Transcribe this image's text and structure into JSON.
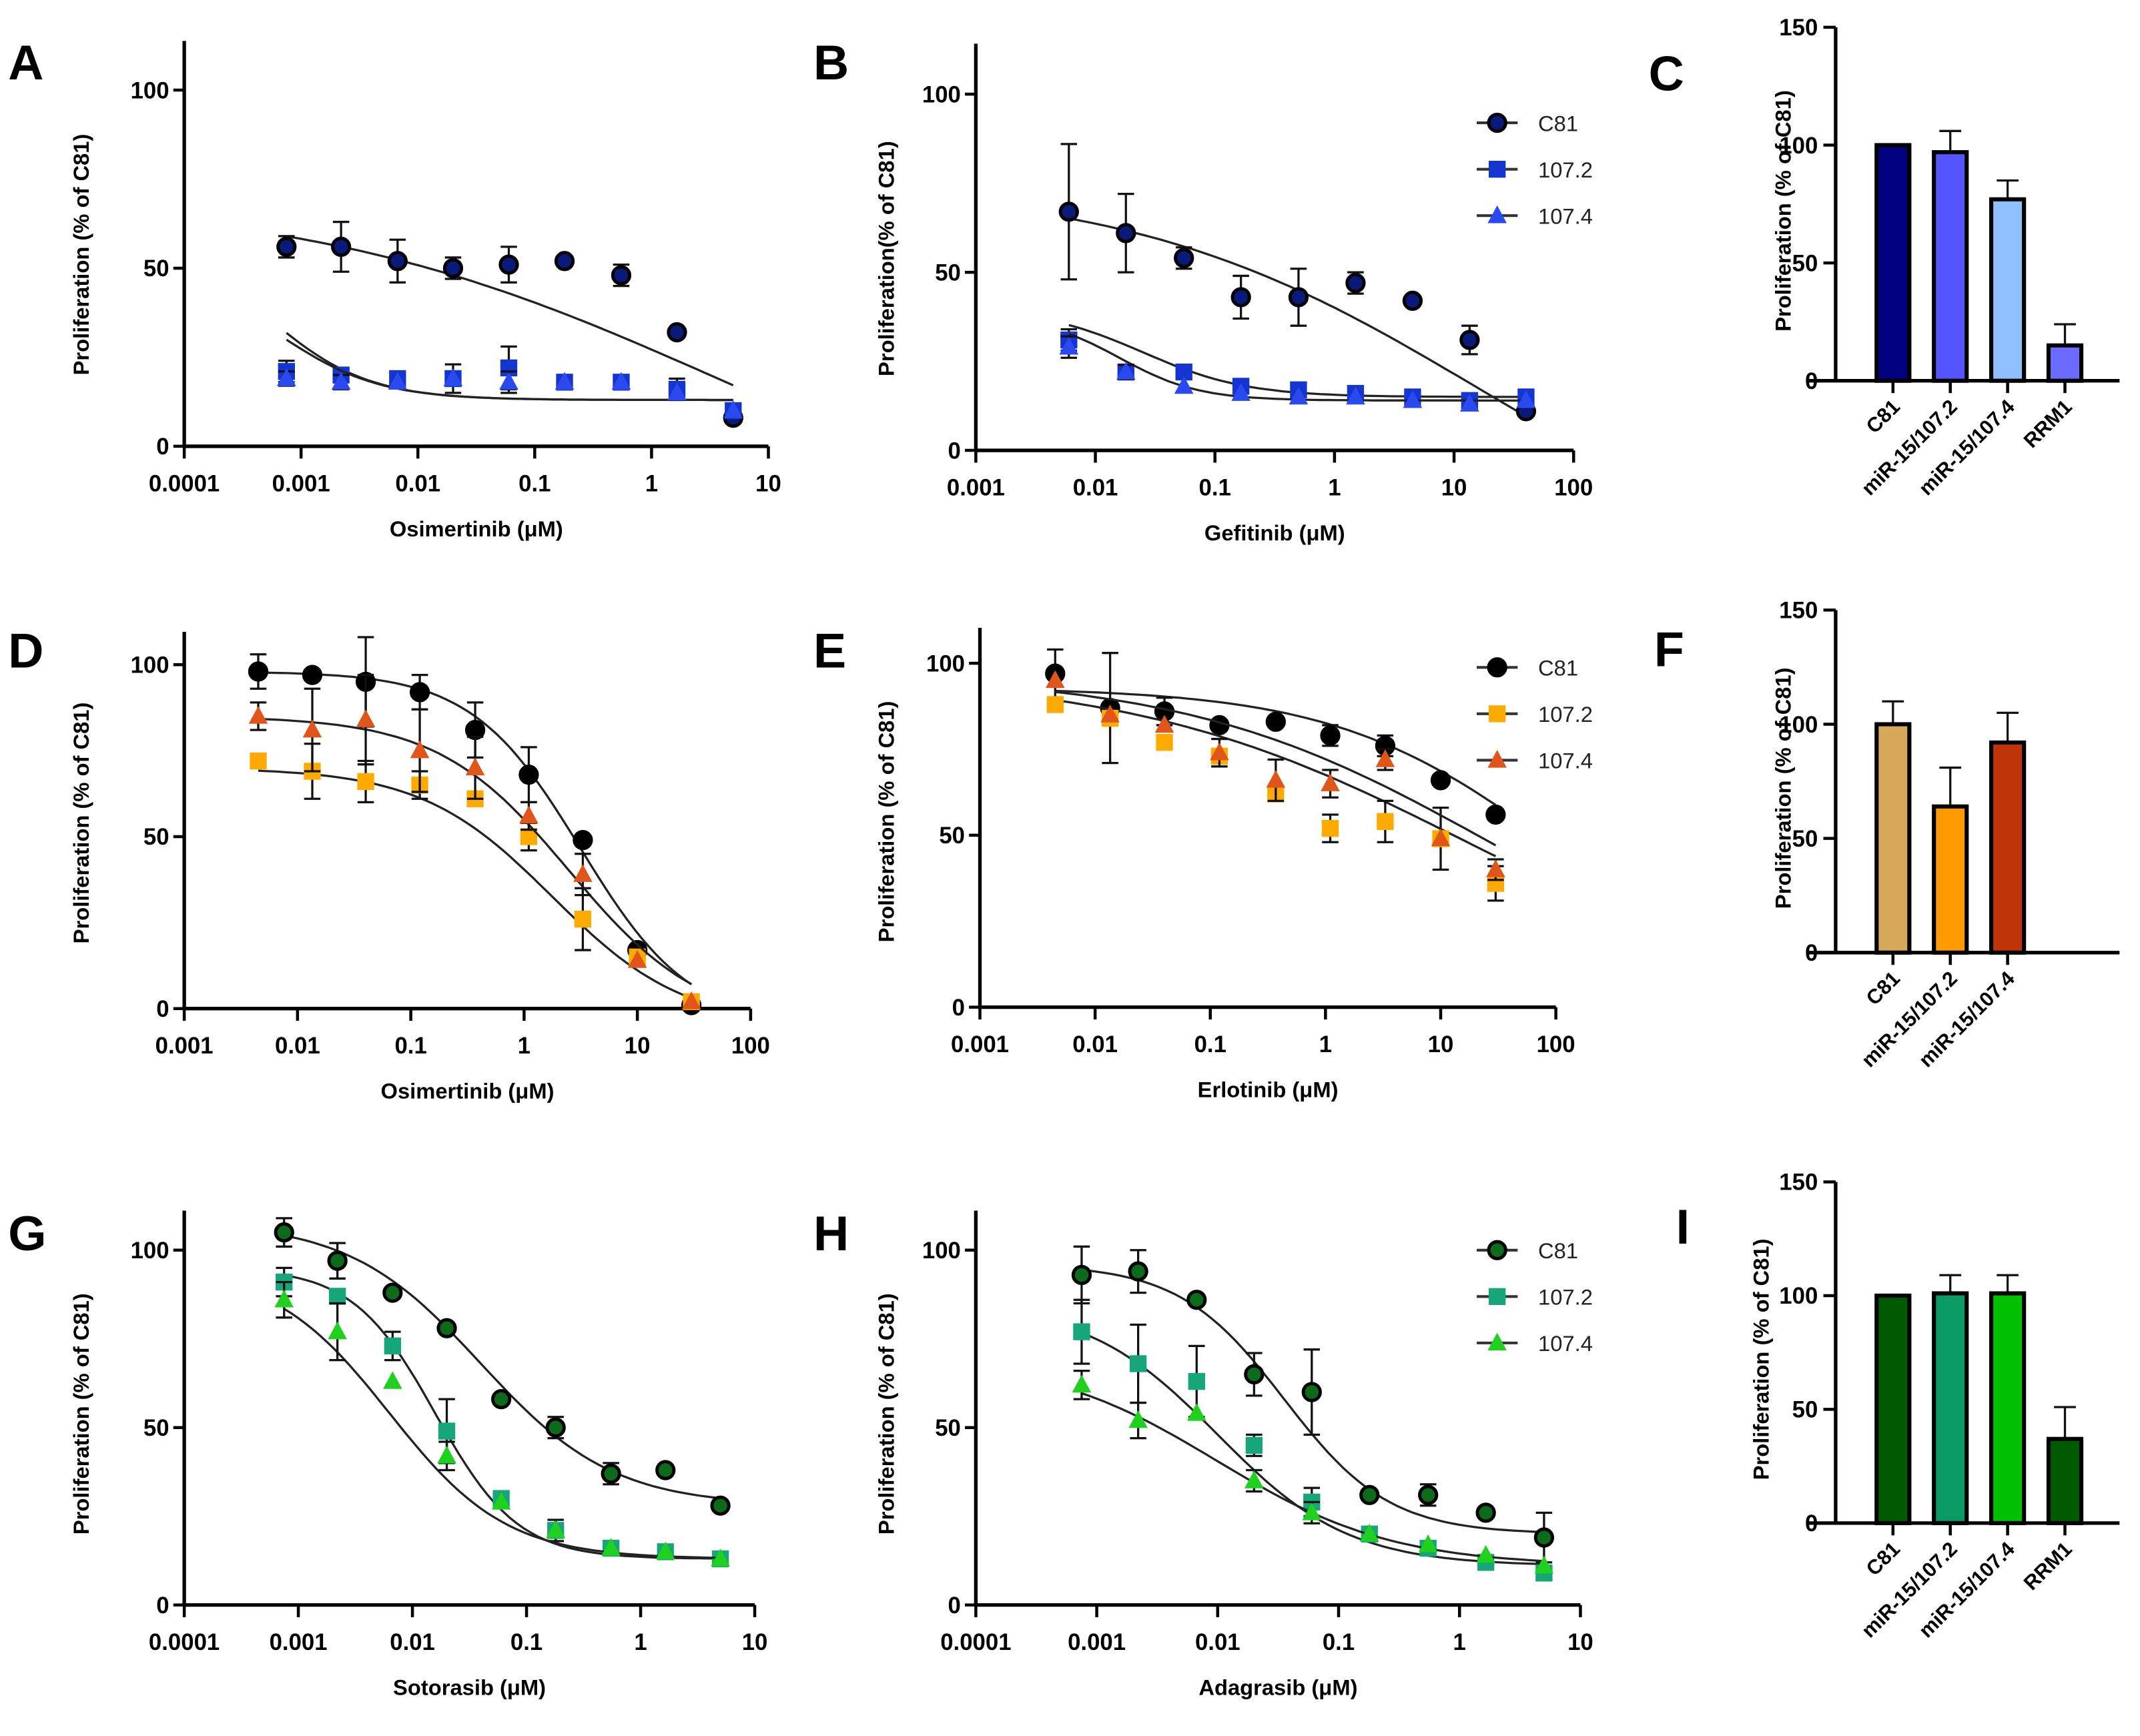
{
  "figure": {
    "panels": [
      "A",
      "B",
      "C",
      "D",
      "E",
      "F",
      "G",
      "H",
      "I"
    ]
  },
  "chart_data": [
    {
      "id": "A",
      "type": "scatter",
      "xscale": "log",
      "xlabel": "Osimertinib (μM)",
      "ylabel": "Proliferation (% of C81)",
      "xticks": [
        "0.0001",
        "0.001",
        "0.01",
        "0.1",
        "1",
        "10"
      ],
      "xlim": [
        0.0001,
        10
      ],
      "yticks": [
        "0",
        "50",
        "100"
      ],
      "ylim": [
        0,
        100
      ],
      "legend": null,
      "colors": {
        "C81": "#0a1a7a",
        "107.2": "#1535d0",
        "107.4": "#2a4af0"
      },
      "series": [
        {
          "name": "C81",
          "marker": "circle",
          "x": [
            0.00075,
            0.0022,
            0.0067,
            0.02,
            0.06,
            0.18,
            0.55,
            1.65,
            5
          ],
          "y": [
            56,
            56,
            52,
            50,
            51,
            52,
            48,
            32,
            8
          ],
          "err": [
            3,
            7,
            6,
            3,
            5,
            0,
            3,
            0,
            0
          ],
          "fit": {
            "top": 70,
            "bottom": -30,
            "logec50": 0.5,
            "hill": 0.25
          }
        },
        {
          "name": "107.2",
          "marker": "square",
          "x": [
            0.00075,
            0.0022,
            0.0067,
            0.02,
            0.06,
            0.18,
            0.55,
            1.65,
            5
          ],
          "y": [
            21,
            20,
            19,
            19,
            22,
            18,
            18,
            16,
            10
          ],
          "err": [
            3,
            2,
            0,
            4,
            6,
            0,
            0,
            3,
            0
          ],
          "fit": {
            "top": 60,
            "bottom": 13,
            "logec50": -3.3,
            "hill": 1.0
          }
        },
        {
          "name": "107.4",
          "marker": "triangle",
          "x": [
            0.00075,
            0.0022,
            0.0067,
            0.02,
            0.06,
            0.18,
            0.55,
            1.65,
            5
          ],
          "y": [
            19,
            18,
            18,
            19,
            18,
            18,
            18,
            15,
            10
          ],
          "err": [
            2,
            2,
            0,
            0,
            3,
            0,
            0,
            0,
            0
          ],
          "fit": {
            "top": 50,
            "bottom": 13,
            "logec50": -3.2,
            "hill": 1.0
          }
        }
      ]
    },
    {
      "id": "B",
      "type": "scatter",
      "xscale": "log",
      "xlabel": "Gefitinib (μM)",
      "ylabel": "Proliferation(% of C81)",
      "xticks": [
        "0.001",
        "0.01",
        "0.1",
        "1",
        "10",
        "100"
      ],
      "xlim": [
        0.001,
        100
      ],
      "yticks": [
        "0",
        "50",
        "100"
      ],
      "ylim": [
        0,
        100
      ],
      "legend": {
        "position": "top-right",
        "entries": [
          "C81",
          "107.2",
          "107.4"
        ]
      },
      "colors": {
        "C81": "#0a1a7a",
        "107.2": "#1535d0",
        "107.4": "#2a4af0"
      },
      "series": [
        {
          "name": "C81",
          "marker": "circle",
          "x": [
            0.006,
            0.018,
            0.055,
            0.165,
            0.5,
            1.5,
            4.5,
            13.5,
            40
          ],
          "y": [
            67,
            61,
            54,
            43,
            43,
            47,
            42,
            31,
            11
          ],
          "err": [
            19,
            11,
            3,
            6,
            8,
            3,
            0,
            4,
            0
          ],
          "fit": {
            "top": 75,
            "bottom": -40,
            "logec50": 1.2,
            "hill": 0.3
          }
        },
        {
          "name": "107.2",
          "marker": "square",
          "x": [
            0.006,
            0.018,
            0.055,
            0.165,
            0.5,
            1.5,
            4.5,
            13.5,
            40
          ],
          "y": [
            31,
            22,
            22,
            18,
            17,
            16,
            15,
            14,
            15
          ],
          "err": [
            3,
            2,
            0,
            0,
            0,
            0,
            0,
            0,
            0
          ],
          "fit": {
            "top": 40,
            "bottom": 15,
            "logec50": -1.6,
            "hill": 1.0
          }
        },
        {
          "name": "107.4",
          "marker": "triangle",
          "x": [
            0.006,
            0.018,
            0.055,
            0.165,
            0.5,
            1.5,
            4.5,
            13.5,
            40
          ],
          "y": [
            29,
            22,
            18,
            16,
            15,
            15,
            14,
            13,
            14
          ],
          "err": [
            3,
            2,
            0,
            0,
            0,
            0,
            0,
            0,
            0
          ],
          "fit": {
            "top": 38,
            "bottom": 14,
            "logec50": -1.8,
            "hill": 1.3
          }
        }
      ]
    },
    {
      "id": "C",
      "type": "bar",
      "ylabel": "Proliferation (% of C81)",
      "categories": [
        "C81",
        "miR-15/107.2",
        "miR-15/107.4",
        "RRM1"
      ],
      "values": [
        100,
        97,
        77,
        15
      ],
      "errors": [
        0,
        9,
        8,
        9
      ],
      "colors": [
        "#000080",
        "#5555ff",
        "#90c0ff",
        "#6b6bff"
      ],
      "yticks": [
        "0",
        "50",
        "100",
        "150"
      ],
      "ylim": [
        0,
        150
      ]
    },
    {
      "id": "D",
      "type": "scatter",
      "xscale": "log",
      "xlabel": "Osimertinib (μM)",
      "ylabel": "Proliferation (% of C81)",
      "xticks": [
        "0.001",
        "0.01",
        "0.1",
        "1",
        "10",
        "100"
      ],
      "xlim": [
        0.001,
        100
      ],
      "yticks": [
        "0",
        "50",
        "100"
      ],
      "ylim": [
        0,
        100
      ],
      "legend": null,
      "colors": {
        "C81": "#000000",
        "107.2": "#ffaa00",
        "107.4": "#e0561a"
      },
      "series": [
        {
          "name": "C81",
          "marker": "circle",
          "x": [
            0.0045,
            0.0135,
            0.04,
            0.12,
            0.37,
            1.1,
            3.3,
            10,
            30
          ],
          "y": [
            98,
            97,
            95,
            92,
            81,
            68,
            49,
            17,
            1
          ],
          "err": [
            5,
            0,
            13,
            5,
            8,
            8,
            0,
            0,
            0
          ],
          "fit": {
            "top": 98,
            "bottom": -5,
            "logec50": 0.5,
            "hill": 0.9
          }
        },
        {
          "name": "107.2",
          "marker": "square",
          "x": [
            0.0045,
            0.0135,
            0.04,
            0.12,
            0.37,
            1.1,
            3.3,
            10,
            30
          ],
          "y": [
            72,
            69,
            66,
            65,
            61,
            50,
            26,
            15,
            2
          ],
          "err": [
            0,
            8,
            6,
            4,
            0,
            4,
            9,
            0,
            0
          ],
          "fit": {
            "top": 70,
            "bottom": -5,
            "logec50": 0.25,
            "hill": 0.75
          }
        },
        {
          "name": "107.4",
          "marker": "triangle",
          "x": [
            0.0045,
            0.0135,
            0.04,
            0.12,
            0.37,
            1.1,
            3.3,
            10,
            30
          ],
          "y": [
            85,
            81,
            84,
            75,
            70,
            56,
            39,
            14,
            2
          ],
          "err": [
            4,
            12,
            13,
            12,
            9,
            4,
            6,
            0,
            0
          ],
          "fit": {
            "top": 85,
            "bottom": -5,
            "logec50": 0.4,
            "hill": 0.75
          }
        }
      ]
    },
    {
      "id": "E",
      "type": "scatter",
      "xscale": "log",
      "xlabel": "Erlotinib (μM)",
      "ylabel": "Proliferation (% of C81)",
      "xticks": [
        "0.001",
        "0.01",
        "0.1",
        "1",
        "10",
        "100"
      ],
      "xlim": [
        0.001,
        100
      ],
      "yticks": [
        "0",
        "50",
        "100"
      ],
      "ylim": [
        0,
        100
      ],
      "legend": {
        "position": "top-right",
        "entries": [
          "C81",
          "107.2",
          "107.4"
        ]
      },
      "colors": {
        "C81": "#000000",
        "107.2": "#ffaa00",
        "107.4": "#e0561a"
      },
      "series": [
        {
          "name": "C81",
          "marker": "circle",
          "x": [
            0.0045,
            0.0135,
            0.04,
            0.12,
            0.37,
            1.1,
            3.3,
            10,
            30
          ],
          "y": [
            97,
            87,
            86,
            82,
            83,
            79,
            76,
            66,
            56
          ],
          "err": [
            7,
            16,
            4,
            0,
            0,
            3,
            3,
            0,
            0
          ],
          "fit": {
            "top": 93,
            "bottom": 0,
            "logec50": 2.0,
            "hill": 0.45
          }
        },
        {
          "name": "107.2",
          "marker": "square",
          "x": [
            0.0045,
            0.0135,
            0.04,
            0.12,
            0.37,
            1.1,
            3.3,
            10,
            30
          ],
          "y": [
            88,
            84,
            77,
            73,
            62,
            52,
            54,
            49,
            36
          ],
          "err": [
            0,
            0,
            0,
            0,
            0,
            4,
            6,
            9,
            5
          ],
          "fit": {
            "top": 97,
            "bottom": 0,
            "logec50": 1.2,
            "hill": 0.3
          }
        },
        {
          "name": "107.4",
          "marker": "triangle",
          "x": [
            0.0045,
            0.0135,
            0.04,
            0.12,
            0.37,
            1.1,
            3.3,
            10,
            30
          ],
          "y": [
            95,
            85,
            82,
            74,
            66,
            65,
            72,
            49,
            40
          ],
          "err": [
            0,
            0,
            0,
            4,
            6,
            4,
            3,
            0,
            3
          ],
          "fit": {
            "top": 97,
            "bottom": 0,
            "logec50": 1.4,
            "hill": 0.33
          }
        }
      ]
    },
    {
      "id": "F",
      "type": "bar",
      "ylabel": "Proliferation (% of C81)",
      "categories": [
        "C81",
        "miR-15/107.2",
        "miR-15/107.4"
      ],
      "values": [
        100,
        64,
        92
      ],
      "errors": [
        10,
        17,
        13
      ],
      "colors": [
        "#d8a85a",
        "#ff9a00",
        "#c03508"
      ],
      "yticks": [
        "0",
        "50",
        "100",
        "150"
      ],
      "ylim": [
        0,
        150
      ]
    },
    {
      "id": "G",
      "type": "scatter",
      "xscale": "log",
      "xlabel": "Sotorasib (μM)",
      "ylabel": "Proliferation (% of C81)",
      "xticks": [
        "0.0001",
        "0.001",
        "0.01",
        "0.1",
        "1",
        "10"
      ],
      "xlim": [
        0.0001,
        10
      ],
      "yticks": [
        "0",
        "50",
        "100"
      ],
      "ylim": [
        0,
        100
      ],
      "legend": null,
      "colors": {
        "C81": "#0b6b1a",
        "107.2": "#17a67a",
        "107.4": "#1fd01f"
      },
      "series": [
        {
          "name": "C81",
          "marker": "circle",
          "x": [
            0.00075,
            0.0022,
            0.0067,
            0.02,
            0.06,
            0.18,
            0.55,
            1.65,
            5
          ],
          "y": [
            105,
            97,
            88,
            78,
            58,
            50,
            37,
            38,
            28
          ],
          "err": [
            4,
            5,
            0,
            0,
            0,
            3,
            3,
            0,
            0
          ],
          "fit": {
            "top": 108,
            "bottom": 28,
            "logec50": -1.4,
            "hill": 0.75
          }
        },
        {
          "name": "107.2",
          "marker": "square",
          "x": [
            0.00075,
            0.0022,
            0.0067,
            0.02,
            0.06,
            0.18,
            0.55,
            1.65,
            5
          ],
          "y": [
            91,
            87,
            73,
            49,
            30,
            21,
            16,
            15,
            13
          ],
          "err": [
            4,
            0,
            4,
            9,
            0,
            3,
            0,
            0,
            0
          ],
          "fit": {
            "top": 95,
            "bottom": 13,
            "logec50": -1.8,
            "hill": 1.2
          }
        },
        {
          "name": "107.4",
          "marker": "triangle",
          "x": [
            0.00075,
            0.0022,
            0.0067,
            0.02,
            0.06,
            0.18,
            0.55,
            1.65,
            5
          ],
          "y": [
            86,
            77,
            63,
            42,
            29,
            21,
            16,
            15,
            13
          ],
          "err": [
            5,
            8,
            0,
            4,
            0,
            0,
            0,
            0,
            0
          ],
          "fit": {
            "top": 95,
            "bottom": 13,
            "logec50": -2.2,
            "hill": 0.85
          }
        }
      ]
    },
    {
      "id": "H",
      "type": "scatter",
      "xscale": "log",
      "xlabel": "Adagrasib (μM)",
      "ylabel": "Proliferation (% of C81)",
      "xticks": [
        "0.0001",
        "0.001",
        "0.01",
        "0.1",
        "1",
        "10"
      ],
      "xlim": [
        0.0001,
        10
      ],
      "yticks": [
        "0",
        "50",
        "100"
      ],
      "ylim": [
        0,
        100
      ],
      "legend": {
        "position": "top-right",
        "entries": [
          "C81",
          "107.2",
          "107.4"
        ]
      },
      "colors": {
        "C81": "#0b6b1a",
        "107.2": "#17a67a",
        "107.4": "#1fd01f"
      },
      "series": [
        {
          "name": "C81",
          "marker": "circle",
          "x": [
            0.00075,
            0.0022,
            0.0067,
            0.02,
            0.06,
            0.18,
            0.55,
            1.65,
            5
          ],
          "y": [
            93,
            94,
            86,
            65,
            60,
            31,
            31,
            26,
            19
          ],
          "err": [
            8,
            6,
            0,
            6,
            12,
            0,
            3,
            0,
            7
          ],
          "fit": {
            "top": 96,
            "bottom": 20,
            "logec50": -1.45,
            "hill": 1.0
          }
        },
        {
          "name": "107.2",
          "marker": "square",
          "x": [
            0.00075,
            0.0022,
            0.0067,
            0.02,
            0.06,
            0.18,
            0.55,
            1.65,
            5
          ],
          "y": [
            77,
            68,
            63,
            45,
            29,
            20,
            16,
            12,
            9
          ],
          "err": [
            9,
            11,
            10,
            3,
            4,
            0,
            0,
            0,
            0
          ],
          "fit": {
            "top": 85,
            "bottom": 11,
            "logec50": -2.0,
            "hill": 0.8
          }
        },
        {
          "name": "107.4",
          "marker": "triangle",
          "x": [
            0.00075,
            0.0022,
            0.0067,
            0.02,
            0.06,
            0.18,
            0.55,
            1.65,
            5
          ],
          "y": [
            62,
            52,
            54,
            35,
            26,
            20,
            17,
            14,
            11
          ],
          "err": [
            4,
            5,
            0,
            3,
            3,
            0,
            0,
            0,
            0
          ],
          "fit": {
            "top": 70,
            "bottom": 11,
            "logec50": -2.0,
            "hill": 0.6
          }
        }
      ]
    },
    {
      "id": "I",
      "type": "bar",
      "ylabel": "Proliferation (% of C81)",
      "categories": [
        "C81",
        "miR-15/107.2",
        "miR-15/107.4",
        "RRM1"
      ],
      "values": [
        100,
        101,
        101,
        37
      ],
      "errors": [
        0,
        8,
        8,
        14
      ],
      "colors": [
        "#005a00",
        "#0a9a64",
        "#00c000",
        "#005a00"
      ],
      "yticks": [
        "0",
        "50",
        "100",
        "150"
      ],
      "ylim": [
        0,
        150
      ]
    }
  ]
}
